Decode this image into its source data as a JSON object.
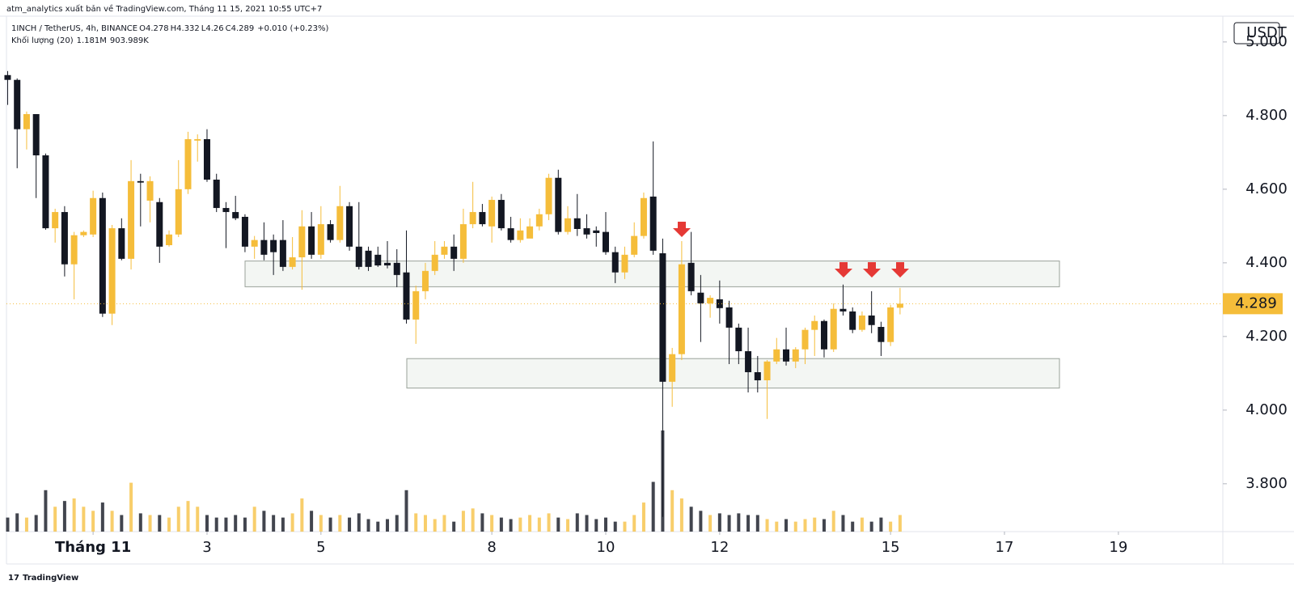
{
  "chart_data": {
    "type": "candlestick",
    "header": "atm_analytics xuất bản về TradingView.com, Tháng 11 15, 2021 10:55 UTC+7",
    "title": "1INCH / TetherUS, 4h, BINANCE",
    "ohlc_labels": [
      "O",
      "H",
      "L",
      "C"
    ],
    "change_label": "+0.010 (+0.23%)",
    "volume_title": "Khối lượng (20)",
    "volume_last_label": "1.181M",
    "volume_ma_label": "903.989K",
    "currency": "USDT",
    "footer": "TradingView",
    "up_color": "#f5bd3a",
    "down_color": "#131722",
    "x": [
      -36,
      -32,
      -28,
      -24,
      -20,
      -16,
      -12,
      -8,
      -4,
      0,
      4,
      8,
      12,
      16,
      20,
      24,
      28,
      32,
      36,
      40,
      44,
      48,
      52,
      56,
      60,
      64,
      68,
      72,
      76,
      80,
      84,
      88,
      92,
      96,
      100,
      104,
      108,
      112,
      116,
      120,
      124,
      128,
      132,
      136,
      140,
      144,
      148,
      152,
      156,
      160,
      164,
      168,
      172,
      176,
      180,
      184,
      188,
      192,
      196,
      200,
      204,
      208,
      212,
      216,
      220,
      224,
      228,
      232,
      236,
      240,
      244,
      248,
      252,
      256,
      260,
      264,
      268,
      272,
      276,
      280,
      284,
      288,
      292,
      296,
      300,
      304,
      308,
      312,
      316,
      320,
      324,
      328,
      332,
      336,
      340
    ],
    "open": [
      4.91,
      4.897,
      4.763,
      4.804,
      4.692,
      4.494,
      4.538,
      4.396,
      4.475,
      4.477,
      4.576,
      4.262,
      4.494,
      4.411,
      4.622,
      4.569,
      4.565,
      4.448,
      4.477,
      4.6,
      4.732,
      4.736,
      4.626,
      4.549,
      4.538,
      4.525,
      4.444,
      4.462,
      4.462,
      4.462,
      4.389,
      4.415,
      4.499,
      4.422,
      4.505,
      4.462,
      4.554,
      4.444,
      4.433,
      4.422,
      4.4,
      4.4,
      4.374,
      4.246,
      4.323,
      4.378,
      4.422,
      4.444,
      4.411,
      4.505,
      4.538,
      4.499,
      4.571,
      4.494,
      4.462,
      4.466,
      4.499,
      4.532,
      4.631,
      4.484,
      4.521,
      4.494,
      4.488,
      4.484,
      4.429,
      4.374,
      4.422,
      4.473,
      4.58,
      4.426,
      4.077,
      4.152,
      4.4,
      4.319,
      4.29,
      4.301,
      4.279,
      4.224,
      4.16,
      4.103,
      4.081,
      4.132,
      4.165,
      4.132,
      4.165,
      4.218,
      4.242,
      4.165,
      4.275,
      4.268,
      4.218,
      4.257,
      4.226,
      4.185,
      4.278
    ],
    "high": [
      4.921,
      4.901,
      4.811,
      4.804,
      4.697,
      4.547,
      4.554,
      4.484,
      4.488,
      4.596,
      4.591,
      4.503,
      4.521,
      4.679,
      4.642,
      4.635,
      4.576,
      4.488,
      4.679,
      4.756,
      4.749,
      4.763,
      4.642,
      4.565,
      4.582,
      4.532,
      4.473,
      4.51,
      4.477,
      4.516,
      4.47,
      4.543,
      4.538,
      4.554,
      4.516,
      4.609,
      4.565,
      4.565,
      4.444,
      4.444,
      4.459,
      4.437,
      4.488,
      4.338,
      4.4,
      4.459,
      4.459,
      4.477,
      4.547,
      4.62,
      4.56,
      4.58,
      4.587,
      4.525,
      4.521,
      4.521,
      4.547,
      4.642,
      4.653,
      4.554,
      4.587,
      4.532,
      4.499,
      4.538,
      4.444,
      4.444,
      4.51,
      4.591,
      4.73,
      4.466,
      4.169,
      4.459,
      4.484,
      4.367,
      4.312,
      4.352,
      4.297,
      4.235,
      4.224,
      4.147,
      4.136,
      4.196,
      4.224,
      4.171,
      4.224,
      4.257,
      4.246,
      4.29,
      4.341,
      4.279,
      4.268,
      4.323,
      4.24,
      4.286,
      4.332
    ],
    "low": [
      4.829,
      4.657,
      4.708,
      4.576,
      4.49,
      4.455,
      4.363,
      4.301,
      4.47,
      4.47,
      4.253,
      4.231,
      4.407,
      4.382,
      4.499,
      4.51,
      4.4,
      4.444,
      4.47,
      4.587,
      4.675,
      4.62,
      4.538,
      4.44,
      4.516,
      4.429,
      4.411,
      4.407,
      4.367,
      4.378,
      4.382,
      4.327,
      4.411,
      4.411,
      4.455,
      4.455,
      4.433,
      4.382,
      4.378,
      4.389,
      4.385,
      4.334,
      4.235,
      4.18,
      4.301,
      4.367,
      4.411,
      4.378,
      4.4,
      4.494,
      4.499,
      4.455,
      4.488,
      4.455,
      4.455,
      4.47,
      4.488,
      4.516,
      4.477,
      4.477,
      4.473,
      4.466,
      4.444,
      4.422,
      4.345,
      4.356,
      4.415,
      4.466,
      4.422,
      3.71,
      4.009,
      4.136,
      4.312,
      4.185,
      4.251,
      4.235,
      4.125,
      4.125,
      4.048,
      4.048,
      3.976,
      4.125,
      4.121,
      4.114,
      4.125,
      4.147,
      4.143,
      4.158,
      4.257,
      4.209,
      4.213,
      4.209,
      4.147,
      4.174,
      4.26
    ],
    "close": [
      4.897,
      4.763,
      4.804,
      4.692,
      4.494,
      4.538,
      4.396,
      4.475,
      4.484,
      4.576,
      4.262,
      4.494,
      4.411,
      4.622,
      4.618,
      4.622,
      4.444,
      4.477,
      4.6,
      4.736,
      4.736,
      4.626,
      4.549,
      4.538,
      4.521,
      4.444,
      4.462,
      4.422,
      4.429,
      4.389,
      4.415,
      4.499,
      4.422,
      4.505,
      4.462,
      4.554,
      4.444,
      4.389,
      4.389,
      4.393,
      4.393,
      4.367,
      4.246,
      4.323,
      4.378,
      4.422,
      4.444,
      4.411,
      4.505,
      4.538,
      4.505,
      4.571,
      4.494,
      4.462,
      4.488,
      4.499,
      4.532,
      4.631,
      4.484,
      4.521,
      4.492,
      4.477,
      4.481,
      4.429,
      4.374,
      4.422,
      4.473,
      4.576,
      4.433,
      4.077,
      4.152,
      4.396,
      4.323,
      4.29,
      4.305,
      4.277,
      4.224,
      4.16,
      4.103,
      4.081,
      4.132,
      4.165,
      4.132,
      4.165,
      4.218,
      4.242,
      4.165,
      4.275,
      4.268,
      4.218,
      4.257,
      4.231,
      4.185,
      4.279,
      4.289
    ],
    "volume": [
      1.0,
      1.3,
      1.0,
      1.18,
      2.95,
      1.77,
      2.18,
      2.36,
      1.77,
      1.48,
      2.07,
      1.48,
      1.18,
      3.48,
      1.3,
      1.18,
      1.18,
      1.0,
      1.77,
      2.18,
      1.77,
      1.18,
      1.0,
      1.0,
      1.18,
      1.0,
      1.77,
      1.48,
      1.18,
      1.0,
      1.3,
      2.36,
      1.48,
      1.18,
      1.0,
      1.18,
      1.0,
      1.3,
      0.89,
      0.71,
      0.89,
      1.18,
      2.95,
      1.3,
      1.18,
      0.89,
      1.18,
      0.71,
      1.48,
      1.65,
      1.3,
      1.18,
      1.0,
      0.89,
      1.0,
      1.18,
      1.0,
      1.3,
      1.0,
      0.89,
      1.3,
      1.18,
      0.89,
      1.0,
      0.71,
      0.71,
      1.18,
      2.07,
      3.54,
      7.2,
      2.95,
      2.36,
      1.77,
      1.48,
      1.18,
      1.3,
      1.18,
      1.3,
      1.18,
      1.18,
      0.89,
      0.71,
      0.89,
      0.71,
      0.89,
      1.0,
      0.89,
      1.48,
      1.18,
      0.71,
      1.0,
      0.71,
      1.0,
      0.71,
      1.181
    ],
    "xlim": [
      -36.5,
      476
    ],
    "xticks": [
      {
        "value": 0,
        "label": "Tháng 11"
      },
      {
        "value": 48,
        "label": "3"
      },
      {
        "value": 96,
        "label": "5"
      },
      {
        "value": 168,
        "label": "8"
      },
      {
        "value": 216,
        "label": "10"
      },
      {
        "value": 264,
        "label": "12"
      },
      {
        "value": 336,
        "label": "15"
      },
      {
        "value": 384,
        "label": "17"
      },
      {
        "value": 432,
        "label": "19"
      }
    ],
    "ylim": [
      3.67,
      5.07
    ],
    "yticks": [
      {
        "value": 3.8,
        "label": "3.800"
      },
      {
        "value": 4.0,
        "label": "4.000"
      },
      {
        "value": 4.2,
        "label": "4.200"
      },
      {
        "value": 4.4,
        "label": "4.400"
      },
      {
        "value": 4.6,
        "label": "4.600"
      },
      {
        "value": 4.8,
        "label": "4.800"
      },
      {
        "value": 5.0,
        "label": "5.000"
      }
    ]
  }
}
